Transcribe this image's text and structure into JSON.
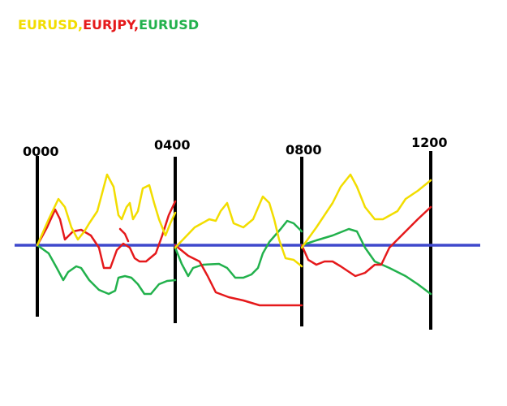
{
  "title": {
    "parts": [
      "EURUSD,",
      "EURJPY,",
      "EURUSD"
    ]
  },
  "time_labels": [
    "0000",
    "0400",
    "0800",
    "1200"
  ]
}
